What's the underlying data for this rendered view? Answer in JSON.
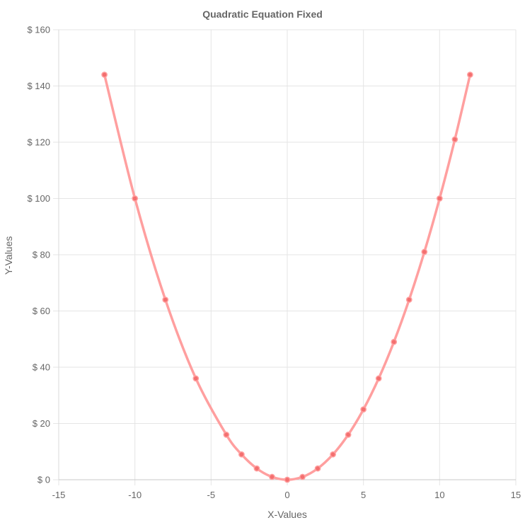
{
  "chart_data": {
    "type": "line",
    "title": "Quadratic Equation Fixed",
    "xlabel": "X-Values",
    "ylabel": "Y-Values",
    "xlim": [
      -15,
      15
    ],
    "ylim": [
      0,
      160
    ],
    "x_ticks": [
      "-15",
      "-10",
      "-5",
      "0",
      "5",
      "10",
      "15"
    ],
    "y_ticks": [
      "$ 0",
      "$ 20",
      "$ 40",
      "$ 60",
      "$ 80",
      "$ 100",
      "$ 120",
      "$ 140",
      "$ 160"
    ],
    "grid": true,
    "legend": "none",
    "series": [
      {
        "color": "#ff9f9f",
        "point_color": "#f36f6f",
        "points": [
          {
            "x": -12,
            "y": 144
          },
          {
            "x": -10,
            "y": 100
          },
          {
            "x": -8,
            "y": 64
          },
          {
            "x": -6,
            "y": 36
          },
          {
            "x": -4,
            "y": 16
          },
          {
            "x": -3,
            "y": 9
          },
          {
            "x": -2,
            "y": 4
          },
          {
            "x": -1,
            "y": 1
          },
          {
            "x": 0,
            "y": 0
          },
          {
            "x": 1,
            "y": 1
          },
          {
            "x": 2,
            "y": 4
          },
          {
            "x": 3,
            "y": 9
          },
          {
            "x": 4,
            "y": 16
          },
          {
            "x": 5,
            "y": 25
          },
          {
            "x": 6,
            "y": 36
          },
          {
            "x": 7,
            "y": 49
          },
          {
            "x": 8,
            "y": 64
          },
          {
            "x": 9,
            "y": 81
          },
          {
            "x": 10,
            "y": 100
          },
          {
            "x": 11,
            "y": 121
          },
          {
            "x": 12,
            "y": 144
          }
        ]
      }
    ]
  }
}
